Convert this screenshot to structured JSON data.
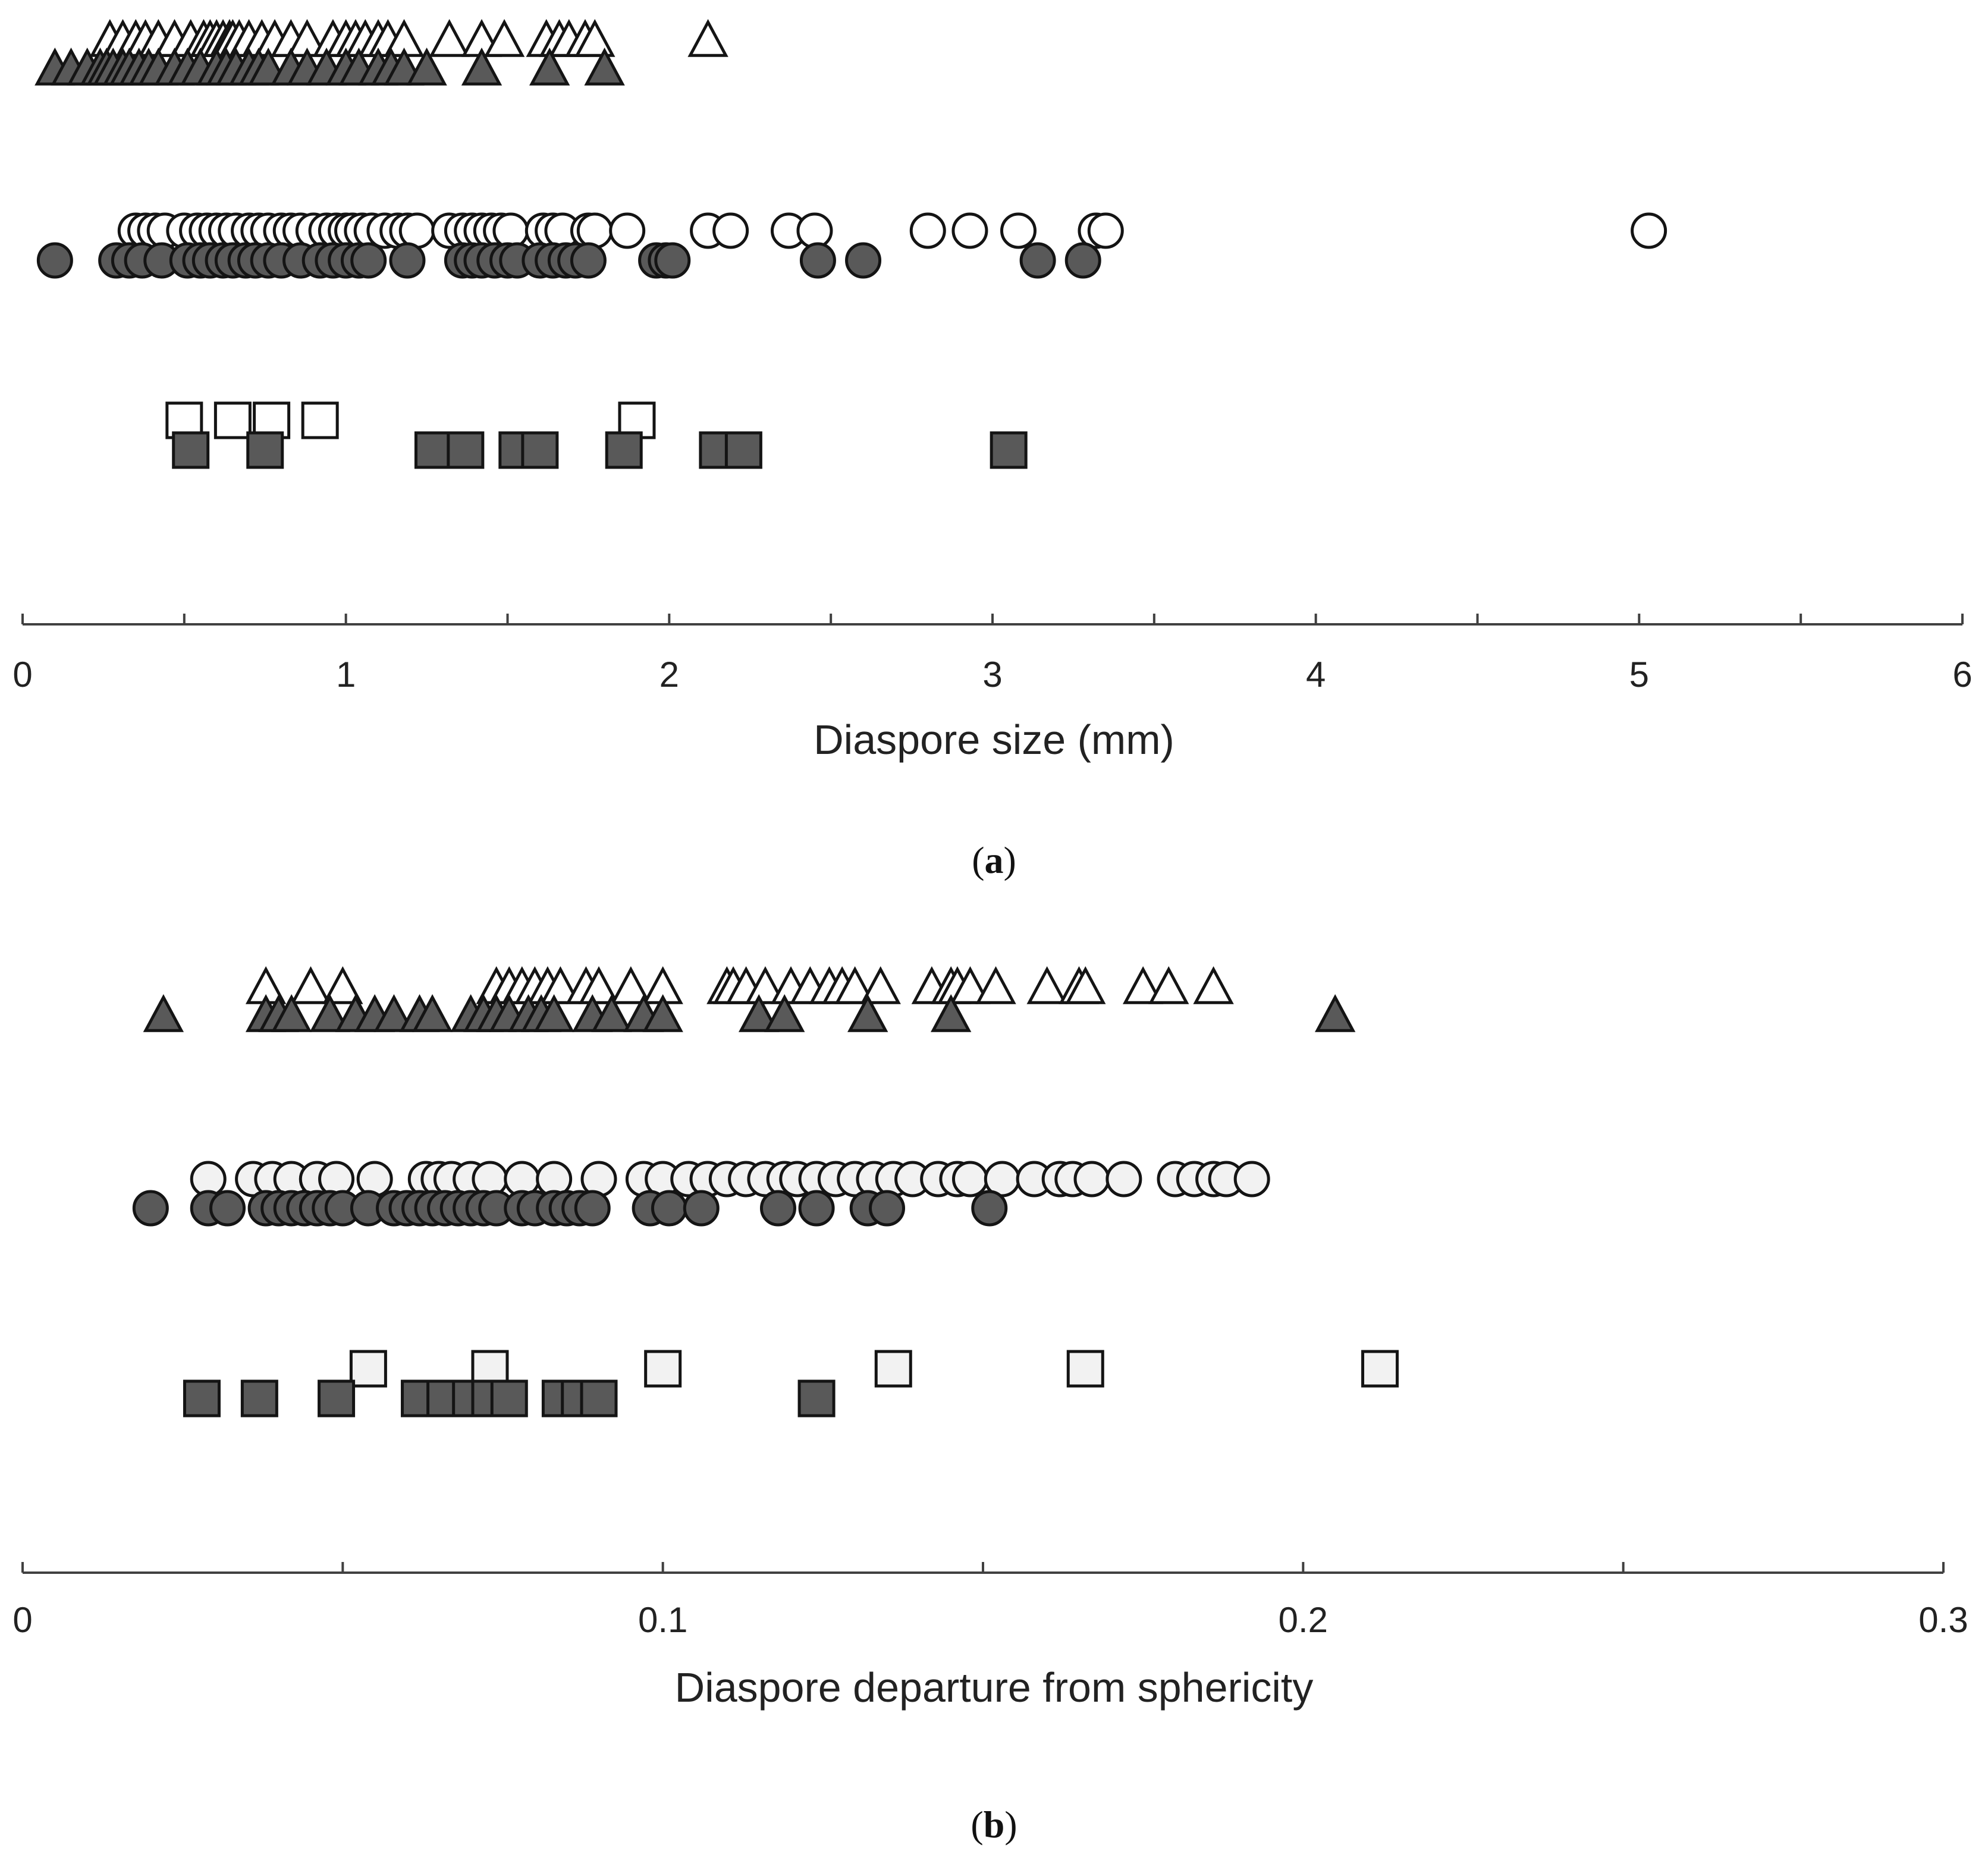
{
  "colors": {
    "filled": "#595959",
    "open": "#ffffff",
    "open_light": "#f2f2f2",
    "axis": "#404040"
  },
  "chart_data": [
    {
      "type": "scatter",
      "panel_label": "a",
      "xlabel": "Diaspore size (mm)",
      "xlim": [
        0,
        6
      ],
      "xticks": [
        "0",
        "1",
        "2",
        "3",
        "4",
        "5",
        "6"
      ],
      "xticks_values": [
        0,
        1,
        2,
        3,
        4,
        5,
        6
      ],
      "minor_ticks_step": 0.5,
      "grid": false,
      "series": [
        {
          "marker": "triangle",
          "fill": "open",
          "row": 0,
          "x": [
            0.27,
            0.31,
            0.35,
            0.38,
            0.42,
            0.47,
            0.52,
            0.56,
            0.58,
            0.6,
            0.62,
            0.64,
            0.65,
            0.67,
            0.7,
            0.74,
            0.78,
            0.83,
            0.88,
            0.96,
            1.0,
            1.03,
            1.06,
            1.1,
            1.13,
            1.18,
            1.32,
            1.42,
            1.49,
            1.62,
            1.66,
            1.69,
            1.74,
            1.77,
            2.12
          ]
        },
        {
          "marker": "triangle",
          "fill": "filled",
          "row": 1,
          "x": [
            0.1,
            0.15,
            0.2,
            0.24,
            0.26,
            0.28,
            0.31,
            0.33,
            0.36,
            0.39,
            0.42,
            0.47,
            0.51,
            0.55,
            0.6,
            0.63,
            0.66,
            0.7,
            0.73,
            0.76,
            0.83,
            0.88,
            0.94,
            1.0,
            1.04,
            1.1,
            1.14,
            1.18,
            1.25,
            1.42,
            1.63,
            1.8
          ]
        },
        {
          "marker": "circle",
          "fill": "open",
          "row": 0,
          "x": [
            0.35,
            0.38,
            0.41,
            0.44,
            0.5,
            0.54,
            0.57,
            0.6,
            0.63,
            0.66,
            0.7,
            0.73,
            0.76,
            0.8,
            0.83,
            0.86,
            0.9,
            0.94,
            0.97,
            1.0,
            1.02,
            1.05,
            1.08,
            1.12,
            1.16,
            1.19,
            1.22,
            1.32,
            1.36,
            1.39,
            1.42,
            1.45,
            1.48,
            1.51,
            1.61,
            1.64,
            1.67,
            1.75,
            1.77,
            1.87,
            2.12,
            2.19,
            2.37,
            2.45,
            2.8,
            2.93,
            3.08,
            3.32,
            3.35,
            5.03
          ]
        },
        {
          "marker": "circle",
          "fill": "filled",
          "row": 1,
          "x": [
            0.1,
            0.29,
            0.33,
            0.37,
            0.43,
            0.51,
            0.55,
            0.58,
            0.62,
            0.65,
            0.69,
            0.72,
            0.76,
            0.8,
            0.86,
            0.92,
            0.96,
            1.0,
            1.04,
            1.07,
            1.19,
            1.36,
            1.39,
            1.42,
            1.46,
            1.5,
            1.53,
            1.6,
            1.64,
            1.68,
            1.71,
            1.75,
            1.96,
            1.99,
            2.01,
            2.46,
            2.6,
            3.14,
            3.28
          ]
        },
        {
          "marker": "square",
          "fill": "open",
          "row": 0,
          "x": [
            0.5,
            0.65,
            0.77,
            0.92,
            1.9
          ]
        },
        {
          "marker": "square",
          "fill": "filled",
          "row": 1,
          "x": [
            0.52,
            0.75,
            1.27,
            1.37,
            1.53,
            1.6,
            1.86,
            2.15,
            2.23,
            3.05
          ]
        }
      ]
    },
    {
      "type": "scatter",
      "panel_label": "b",
      "xlabel": "Diaspore departure from sphericity",
      "xlim": [
        0,
        0.3
      ],
      "xticks": [
        "0",
        "0.1",
        "0.2",
        "0.3"
      ],
      "xticks_values": [
        0,
        0.1,
        0.2,
        0.3
      ],
      "minor_ticks_step": 0.05,
      "grid": false,
      "series": [
        {
          "marker": "triangle",
          "fill": "open",
          "row": 0,
          "x": [
            0.038,
            0.045,
            0.05,
            0.074,
            0.076,
            0.078,
            0.08,
            0.082,
            0.084,
            0.088,
            0.09,
            0.095,
            0.1,
            0.11,
            0.111,
            0.113,
            0.116,
            0.12,
            0.123,
            0.126,
            0.128,
            0.13,
            0.134,
            0.142,
            0.145,
            0.146,
            0.148,
            0.152,
            0.16,
            0.165,
            0.166,
            0.175,
            0.179,
            0.186
          ]
        },
        {
          "marker": "triangle",
          "fill": "filled",
          "row": 1,
          "x": [
            0.022,
            0.038,
            0.04,
            0.042,
            0.048,
            0.052,
            0.055,
            0.058,
            0.062,
            0.064,
            0.07,
            0.072,
            0.074,
            0.076,
            0.079,
            0.081,
            0.083,
            0.089,
            0.092,
            0.097,
            0.1,
            0.115,
            0.119,
            0.132,
            0.145,
            0.205
          ]
        },
        {
          "marker": "circle",
          "fill": "open",
          "row": 0,
          "x": [
            0.029,
            0.036,
            0.039,
            0.042,
            0.046,
            0.049,
            0.055,
            0.063,
            0.065,
            0.067,
            0.07,
            0.073,
            0.078,
            0.083,
            0.09,
            0.097,
            0.1,
            0.104,
            0.107,
            0.11,
            0.113,
            0.116,
            0.119,
            0.121,
            0.124,
            0.127,
            0.13,
            0.133,
            0.136,
            0.139,
            0.143,
            0.146,
            0.148,
            0.153,
            0.158,
            0.162,
            0.164,
            0.167,
            0.172,
            0.18,
            0.183,
            0.186,
            0.188,
            0.192
          ]
        },
        {
          "marker": "circle",
          "fill": "filled",
          "row": 1,
          "x": [
            0.02,
            0.029,
            0.032,
            0.038,
            0.04,
            0.042,
            0.044,
            0.046,
            0.048,
            0.05,
            0.054,
            0.058,
            0.06,
            0.062,
            0.064,
            0.066,
            0.068,
            0.07,
            0.072,
            0.074,
            0.078,
            0.08,
            0.083,
            0.085,
            0.087,
            0.089,
            0.098,
            0.101,
            0.106,
            0.118,
            0.124,
            0.132,
            0.135,
            0.151
          ]
        },
        {
          "marker": "square",
          "fill": "open",
          "row": 0,
          "x": [
            0.054,
            0.073,
            0.1,
            0.136,
            0.166,
            0.212
          ]
        },
        {
          "marker": "square",
          "fill": "filled",
          "row": 1,
          "x": [
            0.028,
            0.037,
            0.049,
            0.062,
            0.066,
            0.07,
            0.073,
            0.076,
            0.084,
            0.087,
            0.09,
            0.124
          ]
        }
      ]
    }
  ]
}
